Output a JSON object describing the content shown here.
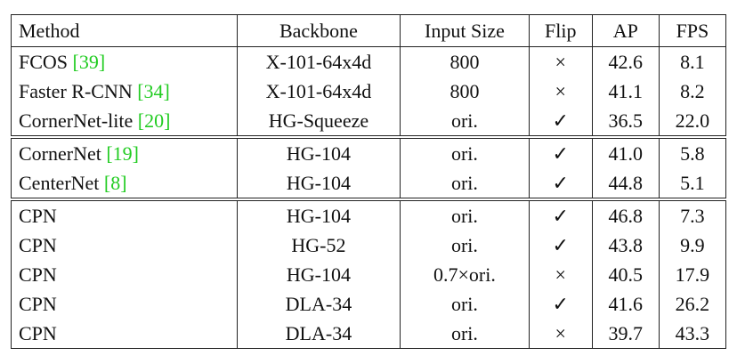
{
  "table": {
    "header": [
      "Method",
      "Backbone",
      "Input Size",
      "Flip",
      "AP",
      "FPS"
    ],
    "groups": [
      {
        "rows": [
          {
            "method": "FCOS",
            "cite": "[39]",
            "backbone": "X-101-64x4d",
            "input": "800",
            "flip": "×",
            "ap": "42.6",
            "fps": "8.1"
          },
          {
            "method": "Faster R-CNN",
            "cite": "[34]",
            "backbone": "X-101-64x4d",
            "input": "800",
            "flip": "×",
            "ap": "41.1",
            "fps": "8.2"
          },
          {
            "method": "CornerNet-lite",
            "cite": "[20]",
            "backbone": "HG-Squeeze",
            "input": "ori.",
            "flip": "✓",
            "ap": "36.5",
            "fps": "22.0"
          }
        ]
      },
      {
        "rows": [
          {
            "method": "CornerNet",
            "cite": "[19]",
            "backbone": "HG-104",
            "input": "ori.",
            "flip": "✓",
            "ap": "41.0",
            "fps": "5.8"
          },
          {
            "method": "CenterNet",
            "cite": "[8]",
            "backbone": "HG-104",
            "input": "ori.",
            "flip": "✓",
            "ap": "44.8",
            "fps": "5.1"
          }
        ]
      },
      {
        "rows": [
          {
            "method": "CPN",
            "backbone": "HG-104",
            "input": "ori.",
            "flip": "✓",
            "ap": "46.8",
            "fps": "7.3"
          },
          {
            "method": "CPN",
            "backbone": "HG-52",
            "input": "ori.",
            "flip": "✓",
            "ap": "43.8",
            "fps": "9.9"
          },
          {
            "method": "CPN",
            "backbone": "HG-104",
            "input": "0.7×ori.",
            "flip": "×",
            "ap": "40.5",
            "fps": "17.9"
          },
          {
            "method": "CPN",
            "backbone": "DLA-34",
            "input": "ori.",
            "flip": "✓",
            "ap": "41.6",
            "fps": "26.2"
          },
          {
            "method": "CPN",
            "backbone": "DLA-34",
            "input": "ori.",
            "flip": "×",
            "ap": "39.7",
            "fps": "43.3"
          }
        ]
      }
    ]
  }
}
